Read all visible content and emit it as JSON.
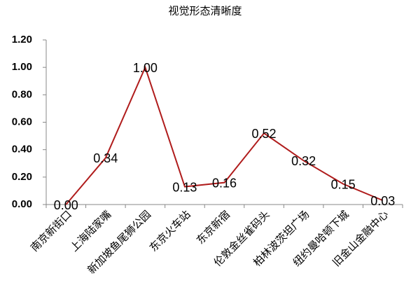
{
  "chart_data": {
    "type": "line",
    "title": "视觉形态清晰度",
    "categories": [
      "南京新街口",
      "上海陆家嘴",
      "新加坡鱼尾狮公园",
      "东京火车站",
      "东京新宿",
      "伦敦金丝雀码头",
      "柏林波茨坦广场",
      "纽约曼哈顿下城",
      "旧金山金融中心"
    ],
    "values": [
      0.0,
      0.34,
      1.0,
      0.13,
      0.16,
      0.52,
      0.32,
      0.15,
      0.03
    ],
    "value_labels": [
      "0.00",
      "0.34",
      "1.00",
      "0.13",
      "0.16",
      "0.52",
      "0.32",
      "0.15",
      "0.03"
    ],
    "color": "#b01c1c",
    "ylim": [
      0,
      1.2
    ],
    "yticks": [
      {
        "value": 0,
        "label": "0.00"
      },
      {
        "value": 0.2,
        "label": "0.20"
      },
      {
        "value": 0.4,
        "label": "0.40"
      },
      {
        "value": 0.6,
        "label": "0.60"
      },
      {
        "value": 0.8,
        "label": "0.80"
      },
      {
        "value": 1,
        "label": "1.00"
      },
      {
        "value": 1.2,
        "label": "1.20"
      }
    ]
  }
}
